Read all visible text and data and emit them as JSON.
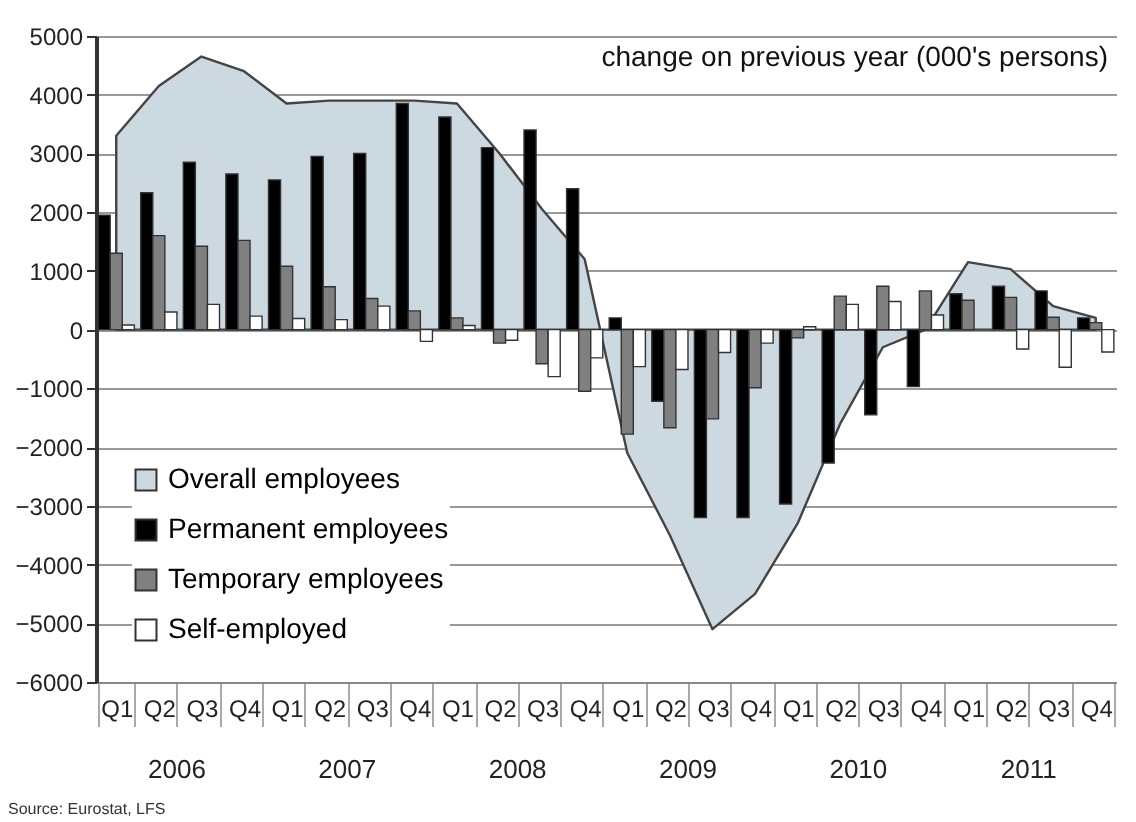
{
  "chart_data": {
    "type": "bar",
    "title": "change on previous year (000's persons)",
    "categories": [
      "Q1",
      "Q2",
      "Q3",
      "Q4",
      "Q1",
      "Q2",
      "Q3",
      "Q4",
      "Q1",
      "Q2",
      "Q3",
      "Q4",
      "Q1",
      "Q2",
      "Q3",
      "Q4",
      "Q1",
      "Q2",
      "Q3",
      "Q4",
      "Q1",
      "Q2",
      "Q3",
      "Q4"
    ],
    "series": [
      {
        "name": "Overall employees",
        "type": "area",
        "color": "#cdd9e0",
        "values": [
          3300,
          4150,
          4650,
          4400,
          3850,
          3900,
          3900,
          3900,
          3850,
          3000,
          2050,
          1200,
          -2100,
          -3500,
          -5100,
          -4500,
          -3300,
          -1600,
          -300,
          0,
          1150,
          1030,
          400,
          200
        ]
      },
      {
        "name": "Permanent employees",
        "color": "#000000",
        "values": [
          1950,
          2330,
          2850,
          2650,
          2550,
          2950,
          3000,
          3850,
          3620,
          3100,
          3400,
          2400,
          200,
          -1220,
          -3200,
          -3200,
          -2970,
          -2270,
          -1450,
          -970,
          610,
          740,
          660,
          200
        ]
      },
      {
        "name": "Temporary employees",
        "color": "#808080",
        "values": [
          1300,
          1600,
          1420,
          1520,
          1080,
          730,
          530,
          320,
          200,
          -230,
          -580,
          -1050,
          -1780,
          -1670,
          -1520,
          -990,
          -140,
          570,
          740,
          660,
          500,
          550,
          210,
          120
        ]
      },
      {
        "name": "Self-employed",
        "color": "#ffffff",
        "values": [
          80,
          300,
          430,
          230,
          190,
          170,
          400,
          -200,
          70,
          -180,
          -800,
          -480,
          -630,
          -680,
          -390,
          -230,
          50,
          430,
          480,
          250,
          null,
          -330,
          -640,
          -380
        ]
      }
    ],
    "ylim": [
      -6000,
      5000
    ],
    "yticks": [
      -6000,
      -5000,
      -4000,
      -3000,
      -2000,
      -1000,
      0,
      1000,
      2000,
      3000,
      4000,
      5000
    ],
    "grid": "y",
    "legend": "bottom left",
    "annotations": [
      "2006",
      "2007",
      "2008",
      "2009",
      "2010",
      "2011",
      "Source: Eurostat, LFS"
    ]
  }
}
